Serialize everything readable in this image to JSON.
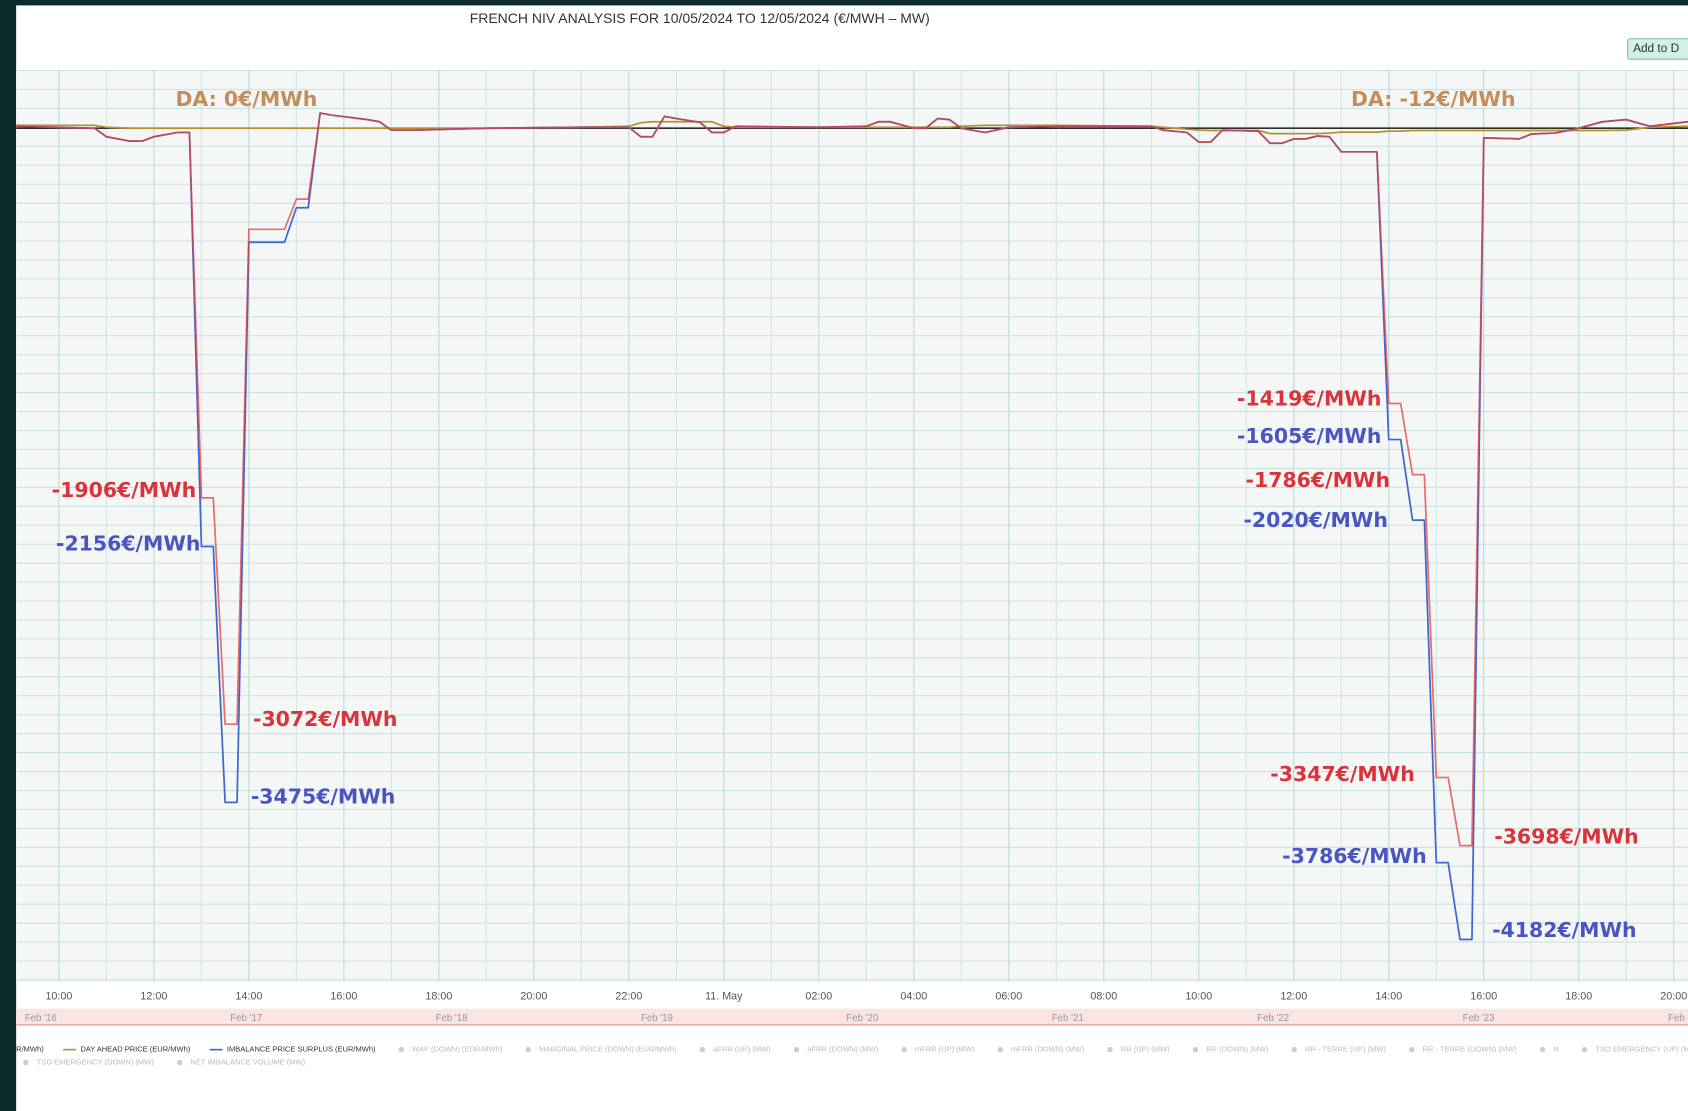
{
  "chart_data": {
    "type": "line",
    "title": "FRENCH NIV ANALYSIS FOR 10/05/2024 TO 12/05/2024 (€/MWH – MW)",
    "button": "Add to D",
    "x": [
      9.1,
      10.75,
      11.0,
      11.5,
      11.75,
      12.0,
      12.5,
      12.75,
      13.0,
      13.25,
      13.5,
      13.75,
      14.0,
      14.75,
      15.0,
      15.25,
      15.5,
      15.75,
      16.5,
      16.75,
      17.0,
      17.5,
      19.0,
      21.0,
      22.0,
      22.25,
      22.5,
      22.75,
      23.0,
      23.5,
      23.75,
      24.0,
      24.25,
      26.0,
      27.0,
      27.25,
      27.5,
      28.0,
      28.25,
      28.5,
      28.75,
      29.0,
      29.5,
      30.0,
      31.0,
      33.0,
      33.25,
      33.75,
      34.0,
      34.25,
      34.5,
      35.25,
      35.5,
      35.75,
      36.0,
      36.25,
      36.5,
      36.75,
      37.0,
      37.75,
      38.0,
      38.25,
      38.5,
      38.75,
      39.0,
      39.25,
      39.5,
      39.75,
      40.0,
      40.75,
      41.0,
      41.5,
      42.0,
      42.5,
      43.0,
      43.5,
      44.3
    ],
    "series": [
      {
        "name": "IMBALANCE PRICE SURPLUS (EUR/MWh)",
        "color": "#3f66d0",
        "values": [
          10,
          0,
          -44,
          -67,
          -67,
          -44,
          -22,
          -22,
          -2156,
          -2156,
          -3475,
          -3475,
          -588,
          -588,
          -410,
          -410,
          78,
          67,
          44,
          33,
          -10,
          -10,
          0,
          5,
          5,
          -44,
          -44,
          61,
          50,
          30,
          -22,
          -22,
          10,
          5,
          10,
          33,
          33,
          0,
          0,
          50,
          44,
          0,
          -22,
          5,
          10,
          10,
          -10,
          -22,
          -72,
          -72,
          -10,
          -15,
          -78,
          -78,
          -55,
          -55,
          -40,
          -44,
          -122,
          -122,
          -1605,
          -1605,
          -2020,
          -2020,
          -3786,
          -3786,
          -4182,
          -4182,
          -50,
          -55,
          -30,
          -25,
          0,
          33,
          44,
          10,
          33
        ]
      },
      {
        "name": "R/MWh)",
        "color": "#e0403c",
        "values": [
          10,
          0,
          -44,
          -67,
          -67,
          -44,
          -22,
          -22,
          -1906,
          -1906,
          -3072,
          -3072,
          -521,
          -521,
          -366,
          -366,
          78,
          67,
          44,
          33,
          -10,
          -10,
          0,
          5,
          5,
          -44,
          -44,
          61,
          50,
          30,
          -22,
          -22,
          10,
          5,
          10,
          33,
          33,
          0,
          0,
          50,
          44,
          0,
          -22,
          5,
          10,
          10,
          -10,
          -22,
          -72,
          -72,
          -10,
          -15,
          -78,
          -78,
          -55,
          -55,
          -40,
          -44,
          -122,
          -122,
          -1419,
          -1419,
          -1786,
          -1786,
          -3347,
          -3347,
          -3698,
          -3698,
          -50,
          -55,
          -30,
          -25,
          0,
          33,
          44,
          10,
          33
        ]
      },
      {
        "name": "DAY AHEAD PRICE (EUR/MWh)",
        "color": "#b5922e",
        "values": [
          15,
          15,
          5,
          0,
          0,
          0,
          0,
          0,
          0,
          0,
          0,
          0,
          0,
          0,
          0,
          0,
          0,
          0,
          0,
          0,
          0,
          0,
          0,
          5,
          10,
          28,
          33,
          33,
          33,
          33,
          33,
          10,
          5,
          5,
          5,
          5,
          5,
          5,
          5,
          5,
          5,
          10,
          15,
          15,
          15,
          10,
          5,
          -5,
          -10,
          -12,
          -12,
          -12,
          -28,
          -28,
          -28,
          -28,
          -28,
          -25,
          -20,
          -20,
          -15,
          -15,
          -12,
          -12,
          -12,
          -12,
          -12,
          -12,
          -12,
          -12,
          -12,
          -12,
          -12,
          -12,
          -10,
          5,
          10
        ]
      }
    ],
    "legend_order": [
      1,
      2,
      0
    ],
    "legend_hidden": [
      "WAP (DOWN) (EUR/MWh)",
      "MARGINAL PRICE (DOWN) (EUR/MWh)",
      "aFRR (UP) (MW)",
      "aFRR (DOWN) (MW)",
      "mFRR (UP) (MW)",
      "mFRR (DOWN) (MW)",
      "RR (UP) (MW)",
      "RR (DOWN) (MW)",
      "RR - TERRE (UP) (MW)",
      "RR - TERRE (DOWN) (MW)",
      "N",
      "TSO EMERGENCY (UP) (MW)",
      "TSO EMERGENCY (DOWN) (MW)",
      "NET IMBALANCE VOLUME (MW)"
    ],
    "xlim": [
      9.1,
      44.3
    ],
    "ylim": [
      -4400,
      300
    ],
    "xticks": [
      {
        "value": 10,
        "label": "10:00"
      },
      {
        "value": 12,
        "label": "12:00"
      },
      {
        "value": 14,
        "label": "14:00"
      },
      {
        "value": 16,
        "label": "16:00"
      },
      {
        "value": 18,
        "label": "18:00"
      },
      {
        "value": 20,
        "label": "20:00"
      },
      {
        "value": 22,
        "label": "22:00"
      },
      {
        "value": 24,
        "label": "11. May"
      },
      {
        "value": 26,
        "label": "02:00"
      },
      {
        "value": 28,
        "label": "04:00"
      },
      {
        "value": 30,
        "label": "06:00"
      },
      {
        "value": 32,
        "label": "08:00"
      },
      {
        "value": 34,
        "label": "10:00"
      },
      {
        "value": 36,
        "label": "12:00"
      },
      {
        "value": 38,
        "label": "14:00"
      },
      {
        "value": 40,
        "label": "16:00"
      },
      {
        "value": 42,
        "label": "18:00"
      },
      {
        "value": 44,
        "label": "20:00"
      }
    ],
    "navigator_labels": [
      "Feb '16",
      "Feb '17",
      "Feb '18",
      "Feb '19",
      "Feb '20",
      "Feb '21",
      "Feb '22",
      "Feb '23",
      "Feb"
    ],
    "annotations": [
      {
        "text": "DA: 0€/MWh",
        "color": "#c48e5c"
      },
      {
        "text": "DA: -12€/MWh",
        "color": "#c48e5c"
      },
      {
        "text": "-1906€/MWh",
        "color": "#d9343c"
      },
      {
        "text": "-2156€/MWh",
        "color": "#4a55c0"
      },
      {
        "text": "-3072€/MWh",
        "color": "#d9343c"
      },
      {
        "text": "-3475€/MWh",
        "color": "#4a55c0"
      },
      {
        "text": "-1419€/MWh",
        "color": "#d9343c"
      },
      {
        "text": "-1605€/MWh",
        "color": "#4a55c0"
      },
      {
        "text": "-1786€/MWh",
        "color": "#d9343c"
      },
      {
        "text": "-2020€/MWh",
        "color": "#4a55c0"
      },
      {
        "text": "-3347€/MWh",
        "color": "#d9343c"
      },
      {
        "text": "-3786€/MWh",
        "color": "#4a55c0"
      },
      {
        "text": "-3698€/MWh",
        "color": "#d9343c"
      },
      {
        "text": "-4182€/MWh",
        "color": "#4a55c0"
      }
    ],
    "grid": true
  }
}
